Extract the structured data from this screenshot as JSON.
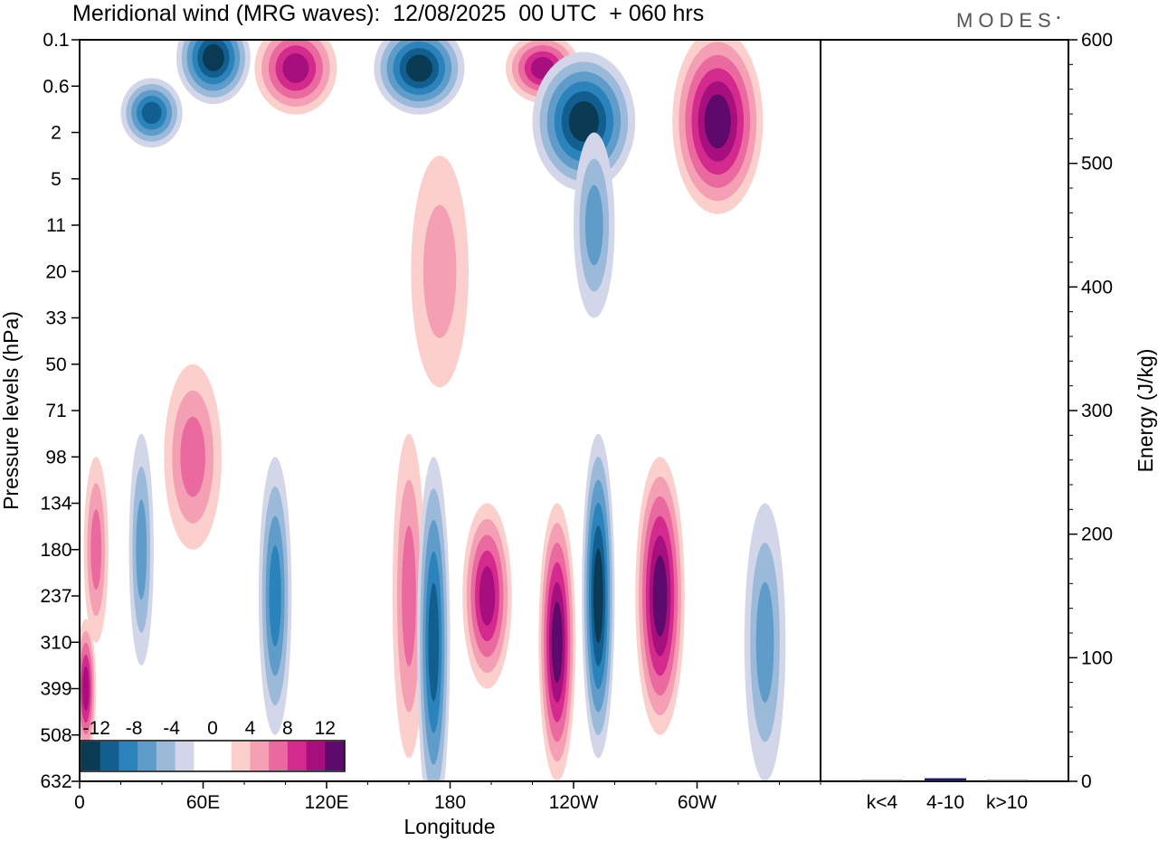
{
  "chart_data": {
    "type": "heatmap",
    "title": "Meridional wind (MRG waves):  12/08/2025  00 UTC  + 060 hrs",
    "logo": "MODES",
    "xlabel": "Longitude",
    "ylabel": "Pressure levels (hPa)",
    "y2label": "Energy (J/kg)",
    "x_ticks": [
      "0",
      "60E",
      "120E",
      "180",
      "120W",
      "60W"
    ],
    "y_levels": [
      "0.1",
      "0.6",
      "2",
      "5",
      "11",
      "20",
      "33",
      "50",
      "71",
      "98",
      "134",
      "180",
      "237",
      "310",
      "399",
      "508",
      "632"
    ],
    "y2_ticks": [
      0,
      100,
      200,
      300,
      400,
      500,
      600
    ],
    "y2lim": [
      0,
      600
    ],
    "energy_categories": [
      "k<4",
      "4-10",
      "k>10"
    ],
    "energy_values": [
      0.5,
      2.5,
      0.5
    ],
    "colorbar": {
      "labels": [
        "-12",
        "-8",
        "-4",
        "0",
        "4",
        "8",
        "12"
      ],
      "colors": [
        "#0b3a55",
        "#125f8f",
        "#2a83bb",
        "#5f9cc9",
        "#9bbad9",
        "#d2d6e8",
        "#ffffff",
        "#ffffff",
        "#fbcfcc",
        "#f59fb4",
        "#ea6a9f",
        "#d42a8d",
        "#a70f7e",
        "#5e0a6d"
      ]
    },
    "blobs": [
      {
        "lon": 65,
        "p": "0.2",
        "v": -12,
        "w": 18,
        "h": 2
      },
      {
        "lon": 105,
        "p": "0.3",
        "v": 10,
        "w": 20,
        "h": 2
      },
      {
        "lon": 165,
        "p": "0.3",
        "v": -12,
        "w": 22,
        "h": 2
      },
      {
        "lon": 225,
        "p": "0.3",
        "v": 9,
        "w": 18,
        "h": 1.5
      },
      {
        "lon": 35,
        "p": "1.2",
        "v": -9,
        "w": 15,
        "h": 1.5
      },
      {
        "lon": 245,
        "p": "1.5",
        "v": -12,
        "w": 25,
        "h": 3
      },
      {
        "lon": 310,
        "p": "1.5",
        "v": 16,
        "w": 22,
        "h": 4
      },
      {
        "lon": 250,
        "p": "11",
        "v": -5,
        "w": 10,
        "h": 4
      },
      {
        "lon": 175,
        "p": "20",
        "v": 4,
        "w": 14,
        "h": 5
      },
      {
        "lon": 55,
        "p": "98",
        "v": 6,
        "w": 14,
        "h": 4
      },
      {
        "lon": 8,
        "p": "180",
        "v": 6,
        "w": 6,
        "h": 4
      },
      {
        "lon": 30,
        "p": "180",
        "v": -5,
        "w": 6,
        "h": 5
      },
      {
        "lon": 95,
        "p": "237",
        "v": -8,
        "w": 8,
        "h": 6
      },
      {
        "lon": 160,
        "p": "237",
        "v": 6,
        "w": 8,
        "h": 7
      },
      {
        "lon": 172,
        "p": "310",
        "v": -9,
        "w": 8,
        "h": 8
      },
      {
        "lon": 198,
        "p": "237",
        "v": 9,
        "w": 12,
        "h": 4
      },
      {
        "lon": 232,
        "p": "310",
        "v": 11,
        "w": 9,
        "h": 6
      },
      {
        "lon": 252,
        "p": "237",
        "v": -13,
        "w": 8,
        "h": 7
      },
      {
        "lon": 282,
        "p": "237",
        "v": 11,
        "w": 12,
        "h": 6
      },
      {
        "lon": 333,
        "p": "310",
        "v": -6,
        "w": 10,
        "h": 6
      },
      {
        "lon": 3,
        "p": "399",
        "v": 9,
        "w": 5,
        "h": 3
      }
    ]
  }
}
